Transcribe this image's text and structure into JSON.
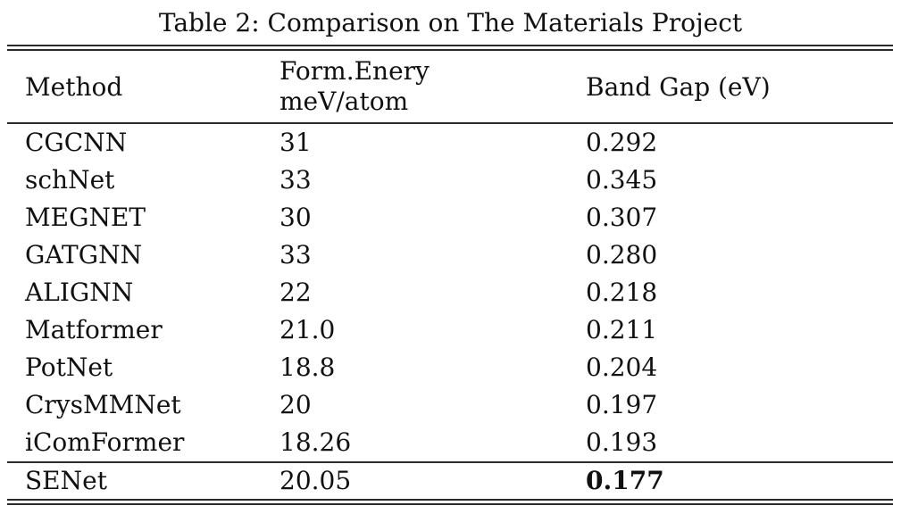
{
  "caption": "Table 2: Comparison on The Materials Project",
  "colors": {
    "background": "#ffffff",
    "text": "#111111",
    "rule": "#2b2b2b"
  },
  "table": {
    "header": {
      "method": "Method",
      "form_energy_line1": "Form.Enery",
      "form_energy_line2": "meV/atom",
      "band_gap": "Band Gap (eV)"
    },
    "rows": [
      {
        "method": "CGCNN",
        "form_energy": "31",
        "band_gap": "0.292"
      },
      {
        "method": "schNet",
        "form_energy": "33",
        "band_gap": "0.345"
      },
      {
        "method": "MEGNET",
        "form_energy": "30",
        "band_gap": "0.307"
      },
      {
        "method": "GATGNN",
        "form_energy": "33",
        "band_gap": "0.280"
      },
      {
        "method": "ALIGNN",
        "form_energy": "22",
        "band_gap": "0.218"
      },
      {
        "method": "Matformer",
        "form_energy": "21.0",
        "band_gap": "0.211"
      },
      {
        "method": "PotNet",
        "form_energy": "18.8",
        "band_gap": "0.204"
      },
      {
        "method": "CrysMMNet",
        "form_energy": "20",
        "band_gap": "0.197"
      },
      {
        "method": "iComFormer",
        "form_energy": "18.26",
        "band_gap": "0.193"
      },
      {
        "method": "SENet",
        "form_energy": "20.05",
        "band_gap": "0.177",
        "band_gap_bold": true
      }
    ]
  }
}
